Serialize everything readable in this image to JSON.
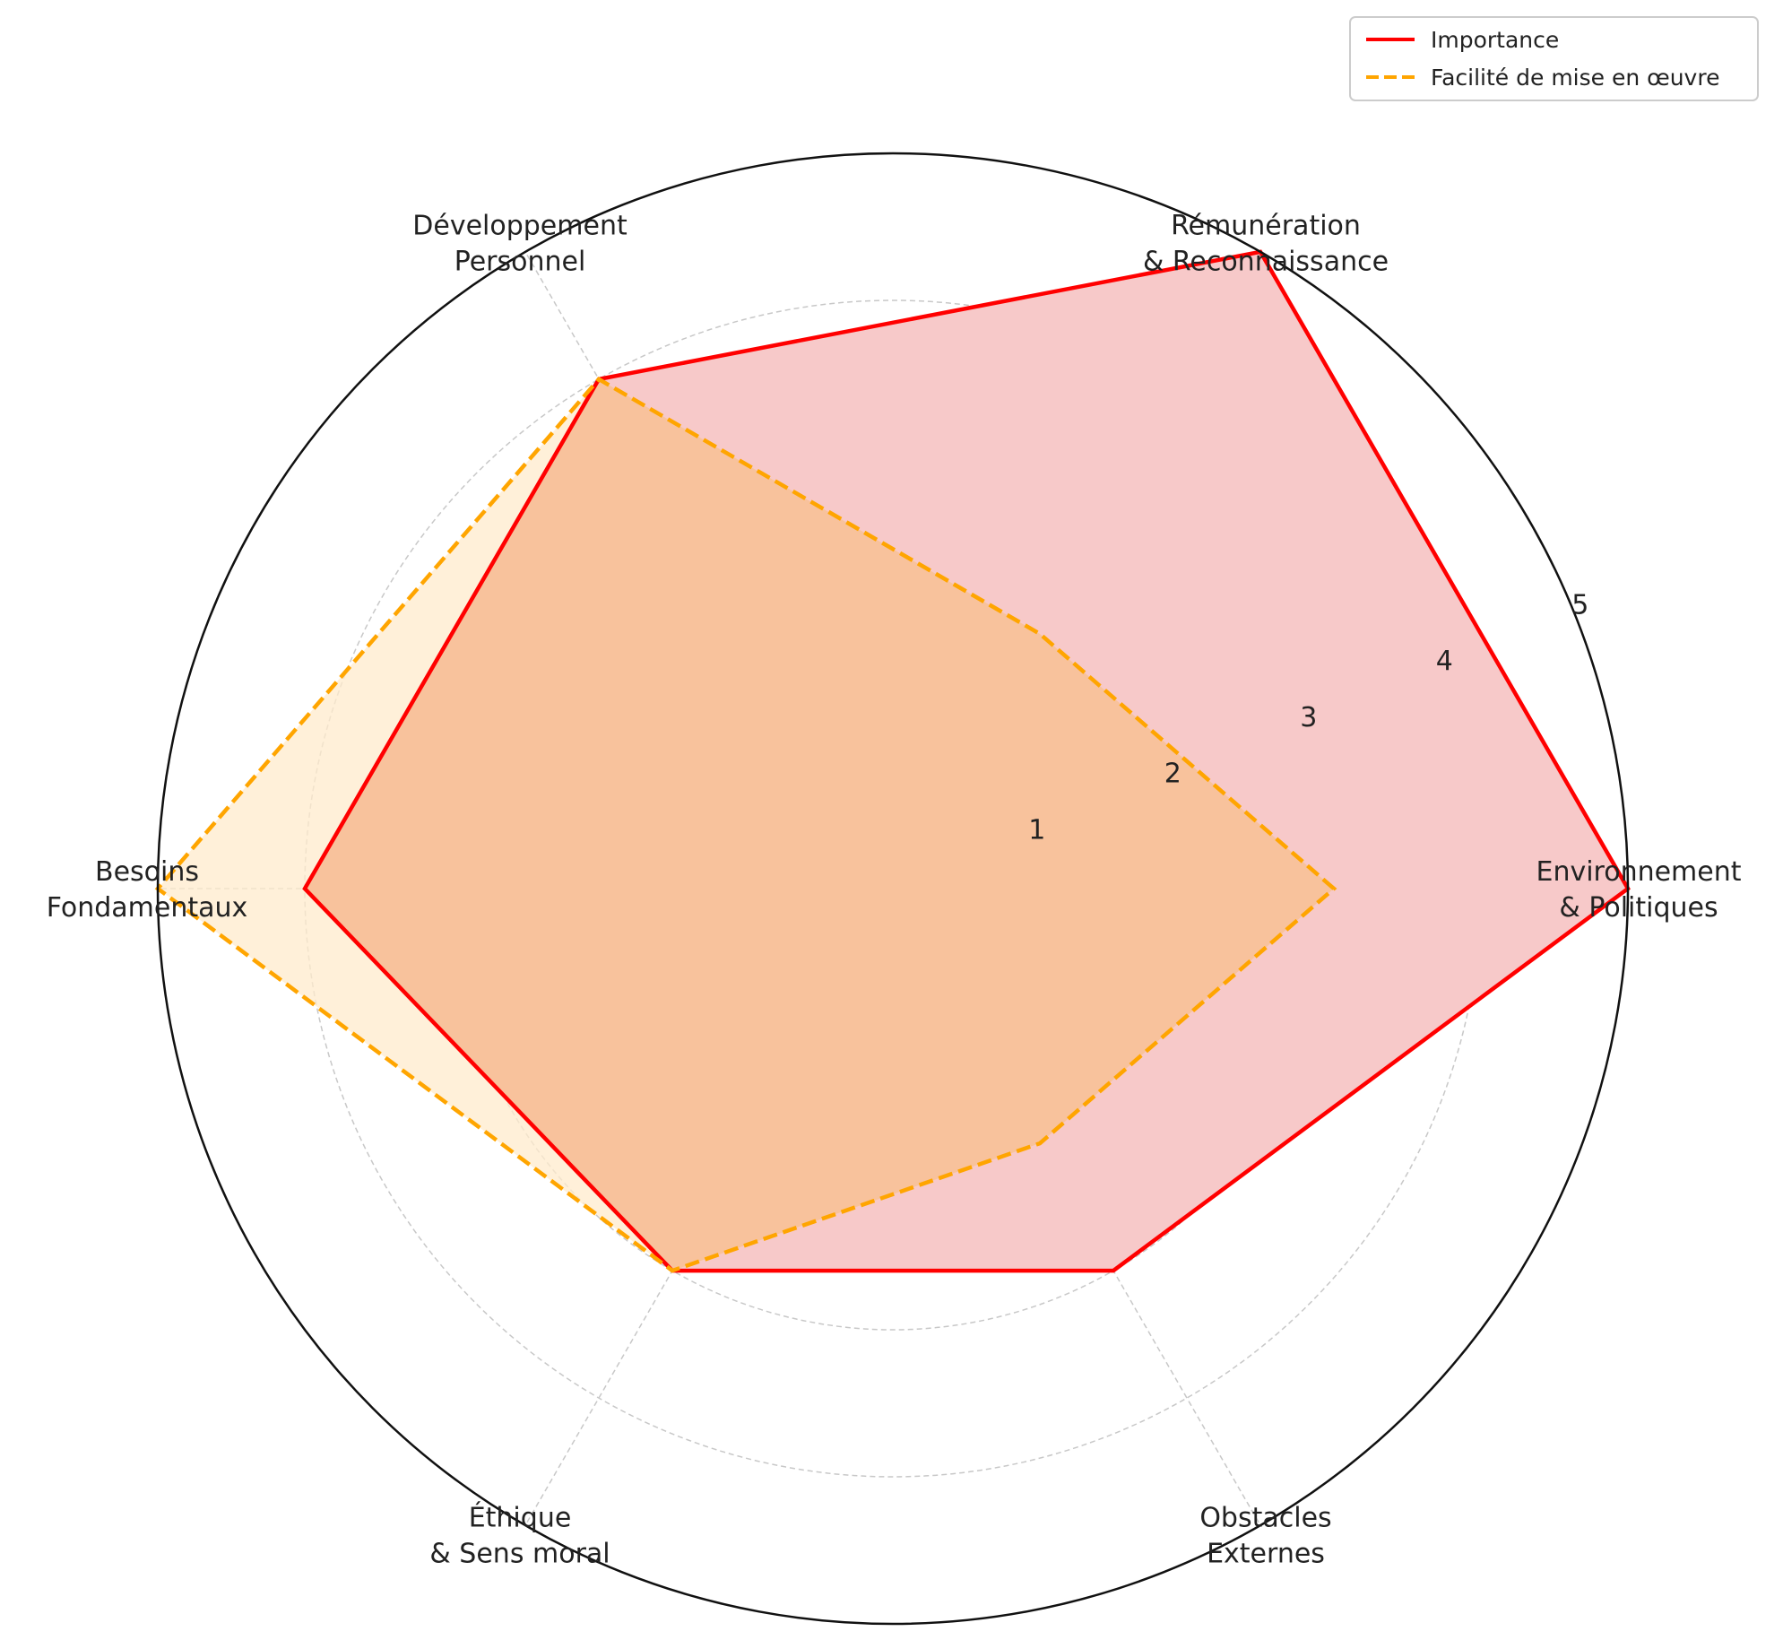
{
  "chart_data": {
    "type": "radar",
    "title": "",
    "axes": [
      {
        "line1": "Environnement",
        "line2": "& Politiques"
      },
      {
        "line1": "Rémunération",
        "line2": "& Reconnaissance"
      },
      {
        "line1": "Développement",
        "line2": "Personnel"
      },
      {
        "line1": "Besoins",
        "line2": "Fondamentaux"
      },
      {
        "line1": "Éthique",
        "line2": "& Sens moral"
      },
      {
        "line1": "Obstacles",
        "line2": "Externes"
      }
    ],
    "rlim": [
      0,
      5
    ],
    "radial_ticks": [
      "1",
      "2",
      "3",
      "4",
      "5"
    ],
    "radial_tick_values": [
      1,
      2,
      3,
      4,
      5
    ],
    "grid": true,
    "legend_position": "top-right",
    "series": [
      {
        "name": "Importance",
        "values": [
          5,
          5,
          4,
          4,
          3,
          3
        ],
        "color": "#ff0000",
        "fill": "#f7c9c9",
        "style": "solid"
      },
      {
        "name": "Facilité de mise en œuvre",
        "values": [
          3,
          2,
          4,
          5,
          3,
          2
        ],
        "color": "#ffa500",
        "fill": "#ffebcc",
        "style": "dashed"
      }
    ]
  }
}
